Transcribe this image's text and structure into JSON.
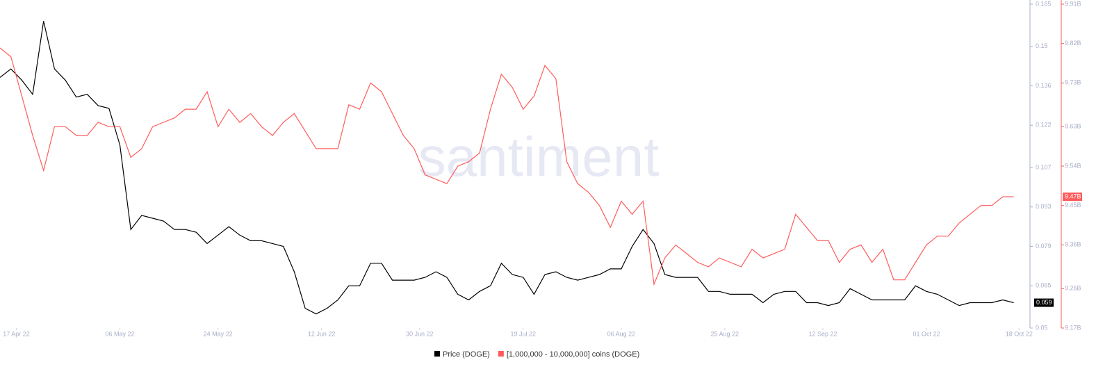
{
  "chart_data": {
    "type": "line",
    "watermark": "santiment",
    "x": [
      "2022-04-14",
      "2022-04-16",
      "2022-04-18",
      "2022-04-20",
      "2022-04-22",
      "2022-04-24",
      "2022-04-26",
      "2022-04-28",
      "2022-04-30",
      "2022-05-02",
      "2022-05-04",
      "2022-05-06",
      "2022-05-08",
      "2022-05-10",
      "2022-05-12",
      "2022-05-14",
      "2022-05-16",
      "2022-05-18",
      "2022-05-20",
      "2022-05-22",
      "2022-05-24",
      "2022-05-26",
      "2022-05-28",
      "2022-05-30",
      "2022-06-01",
      "2022-06-03",
      "2022-06-05",
      "2022-06-07",
      "2022-06-09",
      "2022-06-11",
      "2022-06-13",
      "2022-06-15",
      "2022-06-17",
      "2022-06-19",
      "2022-06-21",
      "2022-06-23",
      "2022-06-25",
      "2022-06-27",
      "2022-06-29",
      "2022-07-01",
      "2022-07-03",
      "2022-07-05",
      "2022-07-07",
      "2022-07-09",
      "2022-07-11",
      "2022-07-13",
      "2022-07-15",
      "2022-07-17",
      "2022-07-19",
      "2022-07-21",
      "2022-07-23",
      "2022-07-25",
      "2022-07-27",
      "2022-07-29",
      "2022-07-31",
      "2022-08-02",
      "2022-08-04",
      "2022-08-06",
      "2022-08-08",
      "2022-08-10",
      "2022-08-12",
      "2022-08-14",
      "2022-08-16",
      "2022-08-18",
      "2022-08-20",
      "2022-08-22",
      "2022-08-24",
      "2022-08-26",
      "2022-08-28",
      "2022-08-30",
      "2022-09-01",
      "2022-09-03",
      "2022-09-05",
      "2022-09-07",
      "2022-09-09",
      "2022-09-11",
      "2022-09-13",
      "2022-09-15",
      "2022-09-17",
      "2022-09-19",
      "2022-09-21",
      "2022-09-23",
      "2022-09-25",
      "2022-09-27",
      "2022-09-29",
      "2022-10-01",
      "2022-10-03",
      "2022-10-05",
      "2022-10-07",
      "2022-10-09",
      "2022-10-11",
      "2022-10-13",
      "2022-10-15",
      "2022-10-17"
    ],
    "xlim": [
      "2022-04-14",
      "2022-10-20"
    ],
    "xticks": [
      {
        "value": "2022-04-17",
        "label": "17 Apr 22"
      },
      {
        "value": "2022-05-06",
        "label": "06 May 22"
      },
      {
        "value": "2022-05-24",
        "label": "24 May 22"
      },
      {
        "value": "2022-06-12",
        "label": "12 Jun 22"
      },
      {
        "value": "2022-06-30",
        "label": "30 Jun 22"
      },
      {
        "value": "2022-07-19",
        "label": "19 Jul 22"
      },
      {
        "value": "2022-08-06",
        "label": "06 Aug 22"
      },
      {
        "value": "2022-08-25",
        "label": "25 Aug 22"
      },
      {
        "value": "2022-09-12",
        "label": "12 Sep 22"
      },
      {
        "value": "2022-10-01",
        "label": "01 Oct 22"
      },
      {
        "value": "2022-10-18",
        "label": "18 Oct 22"
      }
    ],
    "ylim": [
      0.05,
      0.165
    ],
    "yticks": [
      0.05,
      0.065,
      0.079,
      0.093,
      0.107,
      0.122,
      0.136,
      0.15,
      0.165
    ],
    "y2lim": [
      9.17,
      9.91
    ],
    "y2ticks": [
      {
        "value": 9.17,
        "label": "9.17B"
      },
      {
        "value": 9.26,
        "label": "9.26B"
      },
      {
        "value": 9.36,
        "label": "9.36B"
      },
      {
        "value": 9.45,
        "label": "9.45B"
      },
      {
        "value": 9.54,
        "label": "9.54B"
      },
      {
        "value": 9.63,
        "label": "9.63B"
      },
      {
        "value": 9.73,
        "label": "9.73B"
      },
      {
        "value": 9.82,
        "label": "9.82B"
      },
      {
        "value": 9.91,
        "label": "9.91B"
      }
    ],
    "series": [
      {
        "name": "Price (DOGE)",
        "color": "#000000",
        "end_label": "0.059",
        "values": [
          0.139,
          0.142,
          0.138,
          0.133,
          0.159,
          0.142,
          0.138,
          0.132,
          0.133,
          0.129,
          0.128,
          0.115,
          0.085,
          0.09,
          0.089,
          0.088,
          0.085,
          0.085,
          0.084,
          0.08,
          0.083,
          0.086,
          0.083,
          0.081,
          0.081,
          0.08,
          0.079,
          0.07,
          0.057,
          0.055,
          0.057,
          0.06,
          0.065,
          0.065,
          0.073,
          0.073,
          0.067,
          0.067,
          0.067,
          0.068,
          0.07,
          0.068,
          0.062,
          0.06,
          0.063,
          0.065,
          0.073,
          0.069,
          0.068,
          0.062,
          0.069,
          0.07,
          0.068,
          0.067,
          0.068,
          0.069,
          0.071,
          0.071,
          0.079,
          0.085,
          0.08,
          0.069,
          0.068,
          0.068,
          0.068,
          0.063,
          0.063,
          0.062,
          0.062,
          0.062,
          0.059,
          0.062,
          0.063,
          0.063,
          0.059,
          0.059,
          0.058,
          0.059,
          0.064,
          0.062,
          0.06,
          0.06,
          0.06,
          0.06,
          0.065,
          0.063,
          0.062,
          0.06,
          0.058,
          0.059,
          0.059,
          0.059,
          0.06,
          0.059
        ]
      },
      {
        "name": "[1,000,000 - 10,000,000] coins (DOGE)",
        "color": "#ff5b5b",
        "axis": "y2",
        "end_label": "9.47B",
        "values": [
          9.81,
          9.79,
          9.7,
          9.61,
          9.53,
          9.63,
          9.63,
          9.61,
          9.61,
          9.64,
          9.63,
          9.63,
          9.56,
          9.58,
          9.63,
          9.64,
          9.65,
          9.67,
          9.67,
          9.71,
          9.63,
          9.67,
          9.64,
          9.66,
          9.63,
          9.61,
          9.64,
          9.66,
          9.62,
          9.58,
          9.58,
          9.58,
          9.68,
          9.67,
          9.73,
          9.71,
          9.66,
          9.61,
          9.58,
          9.52,
          9.51,
          9.5,
          9.54,
          9.55,
          9.57,
          9.67,
          9.75,
          9.72,
          9.67,
          9.7,
          9.77,
          9.74,
          9.55,
          9.5,
          9.48,
          9.45,
          9.4,
          9.46,
          9.43,
          9.46,
          9.27,
          9.33,
          9.36,
          9.34,
          9.32,
          9.31,
          9.33,
          9.32,
          9.31,
          9.35,
          9.33,
          9.34,
          9.35,
          9.43,
          9.4,
          9.37,
          9.37,
          9.32,
          9.35,
          9.36,
          9.32,
          9.35,
          9.28,
          9.28,
          9.32,
          9.36,
          9.38,
          9.38,
          9.41,
          9.43,
          9.45,
          9.45,
          9.47,
          9.47
        ]
      }
    ]
  }
}
